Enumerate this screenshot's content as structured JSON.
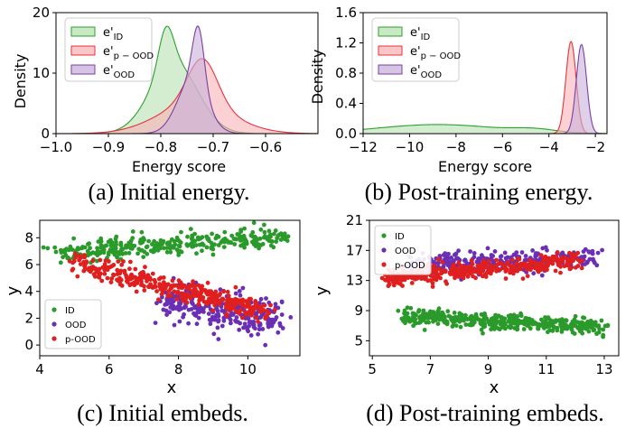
{
  "chart_data": [
    {
      "id": "a",
      "type": "area",
      "caption": "(a) Initial energy.",
      "xlabel": "Energy score",
      "ylabel": "Density",
      "xlim": [
        -1.0,
        -0.5
      ],
      "ylim": [
        0,
        20
      ],
      "xticks": [
        -1.0,
        -0.9,
        -0.8,
        -0.7,
        -0.6
      ],
      "xtick_labels": [
        "−1.0",
        "−0.9",
        "−0.8",
        "−0.7",
        "−0.6"
      ],
      "yticks": [
        0,
        10,
        20
      ],
      "ytick_labels": [
        "0",
        "10",
        "20"
      ],
      "legend": [
        "e'ID",
        "e'p-OOD",
        "e'OOD"
      ],
      "series": [
        {
          "name": "e'ID",
          "color": "#2ca02c",
          "fill": "#b7e0b0",
          "dist": [
            [
              -0.79,
              0.014,
              6.5
            ],
            [
              -0.775,
              0.045,
              11.8
            ]
          ]
        },
        {
          "name": "e'p-OOD",
          "color": "#e8333d",
          "fill": "#f9b3b6",
          "dist": [
            [
              -0.72,
              0.028,
              7.5
            ],
            [
              -0.735,
              0.07,
              5
            ]
          ]
        },
        {
          "name": "e'OOD",
          "color": "#7b3fa0",
          "fill": "#c9b0dc",
          "dist": [
            [
              -0.728,
              0.011,
              9.5
            ],
            [
              -0.74,
              0.028,
              9
            ]
          ]
        }
      ]
    },
    {
      "id": "b",
      "type": "area",
      "caption": "(b) Post-training energy.",
      "xlabel": "Energy score",
      "ylabel": "Density",
      "xlim": [
        -12,
        -1.5
      ],
      "ylim": [
        0,
        1.6
      ],
      "xticks": [
        -12,
        -10,
        -8,
        -6,
        -4,
        -2
      ],
      "xtick_labels": [
        "−12",
        "−10",
        "−8",
        "−6",
        "−4",
        "−2"
      ],
      "yticks": [
        0.0,
        0.4,
        0.8,
        1.2,
        1.6
      ],
      "ytick_labels": [
        "0.0",
        "0.4",
        "0.8",
        "1.2",
        "1.6"
      ],
      "legend": [
        "e'ID",
        "e'p-OOD",
        "e'OOD"
      ],
      "series": [
        {
          "name": "e'ID",
          "color": "#2ca02c",
          "fill": "#b7e0b0",
          "dist": [
            [
              -8.8,
              2.6,
              0.12
            ],
            [
              -4.6,
              0.9,
              0.04
            ]
          ]
        },
        {
          "name": "e'p-OOD",
          "color": "#e8333d",
          "fill": "#f9b3b6",
          "dist": [
            [
              -3.05,
              0.22,
              1.22
            ]
          ]
        },
        {
          "name": "e'OOD",
          "color": "#7b3fa0",
          "fill": "#c9b0dc",
          "dist": [
            [
              -2.6,
              0.22,
              1.18
            ]
          ]
        }
      ]
    },
    {
      "id": "c",
      "type": "scatter",
      "caption": "(c) Initial embeds.",
      "xlabel": "x",
      "ylabel": "y",
      "xlim": [
        4,
        11.5
      ],
      "ylim": [
        -0.8,
        9.3
      ],
      "xticks": [
        4,
        6,
        8,
        10
      ],
      "yticks": [
        0,
        2,
        4,
        6,
        8
      ],
      "legend": [
        "ID",
        "OOD",
        "p-OOD"
      ],
      "series": [
        {
          "name": "ID",
          "color": "#2a9a2a",
          "n": 330,
          "line": [
            [
              4.3,
              6.9
            ],
            [
              11.0,
              8.1
            ]
          ],
          "spread_x": 0.25,
          "spread_y": 0.75,
          "seed": 11
        },
        {
          "name": "OOD",
          "color": "#6a2fb5",
          "n": 270,
          "line": [
            [
              7.6,
              3.4
            ],
            [
              11.0,
              1.6
            ]
          ],
          "spread_x": 0.2,
          "spread_y": 1.35,
          "seed": 23
        },
        {
          "name": "p-OOD",
          "color": "#e01f1f",
          "n": 360,
          "line": [
            [
              4.9,
              6.2
            ],
            [
              10.6,
              2.4
            ]
          ],
          "spread_x": 0.15,
          "spread_y": 0.8,
          "seed": 37
        }
      ]
    },
    {
      "id": "d",
      "type": "scatter",
      "caption": "(d) Post-training embeds.",
      "xlabel": "x",
      "ylabel": "y",
      "xlim": [
        4.9,
        13.5
      ],
      "ylim": [
        3,
        21
      ],
      "xticks": [
        5,
        7,
        9,
        11,
        13
      ],
      "yticks": [
        5,
        9,
        13,
        17,
        21
      ],
      "legend": [
        "ID",
        "OOD",
        "p-OOD"
      ],
      "series": [
        {
          "name": "ID",
          "color": "#2a9a2a",
          "n": 420,
          "line": [
            [
              6.0,
              8.2
            ],
            [
              13.0,
              6.8
            ]
          ],
          "spread_x": 0.1,
          "spread_y": 1.1,
          "seed": 41
        },
        {
          "name": "OOD",
          "color": "#6a2fb5",
          "n": 300,
          "line": [
            [
              6.0,
              15.0
            ],
            [
              12.8,
              15.8
            ]
          ],
          "spread_x": 0.1,
          "spread_y": 1.6,
          "seed": 53
        },
        {
          "name": "p-OOD",
          "color": "#e01f1f",
          "n": 380,
          "line": [
            [
              5.4,
              13.3
            ],
            [
              12.2,
              15.6
            ]
          ],
          "spread_x": 0.1,
          "spread_y": 1.1,
          "seed": 67
        }
      ]
    }
  ]
}
